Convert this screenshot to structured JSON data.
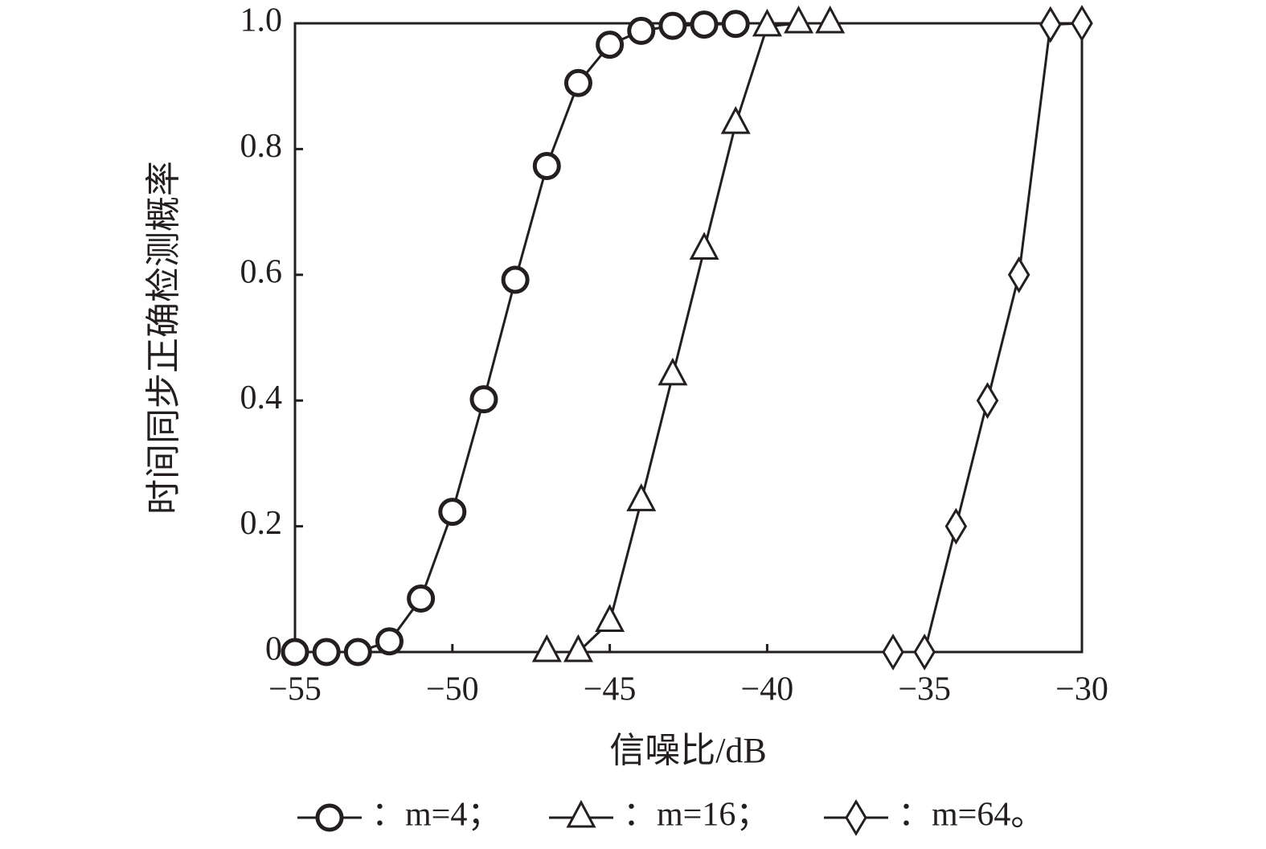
{
  "chart_data": {
    "type": "line",
    "xlabel": "信噪比/dB",
    "ylabel": "时间同步正确检测概率",
    "xlim": [
      -55,
      -30
    ],
    "ylim": [
      0,
      1
    ],
    "xticks": [
      {
        "value": -55,
        "label": "−55"
      },
      {
        "value": -50,
        "label": "−50"
      },
      {
        "value": -45,
        "label": "−45"
      },
      {
        "value": -40,
        "label": "−40"
      },
      {
        "value": -35,
        "label": "−35"
      },
      {
        "value": -30,
        "label": "−30"
      }
    ],
    "yticks": [
      0,
      0.2,
      0.4,
      0.6,
      0.8,
      {
        "value": 1,
        "label": "1.0"
      }
    ],
    "grid": false,
    "series": [
      {
        "name": "：m=4；",
        "color": "#231f20",
        "marker": "circle",
        "x": [
          -55,
          -54,
          -53,
          -52,
          -51,
          -50,
          -49,
          -48,
          -47,
          -46,
          -45,
          -44,
          -43,
          -42,
          -41
        ],
        "values": [
          0,
          0,
          0,
          0.017,
          0.085,
          0.223,
          0.402,
          0.592,
          0.773,
          0.905,
          0.966,
          0.988,
          0.996,
          0.998,
          0.999
        ]
      },
      {
        "name": "：m=16；",
        "color": "#231f20",
        "marker": "triangle",
        "x": [
          -47,
          -46,
          -45,
          -44,
          -43,
          -42,
          -41,
          -40,
          -39,
          -38
        ],
        "values": [
          0,
          0,
          0.048,
          0.24,
          0.44,
          0.64,
          0.84,
          0.995,
          1.0,
          1.0
        ]
      },
      {
        "name": "：m=64。",
        "color": "#231f20",
        "marker": "diamond",
        "x": [
          -36,
          -35,
          -34,
          -33,
          -32,
          -31,
          -30
        ],
        "values": [
          0,
          0,
          0.2,
          0.4,
          0.6,
          0.998,
          1.0
        ]
      }
    ]
  }
}
